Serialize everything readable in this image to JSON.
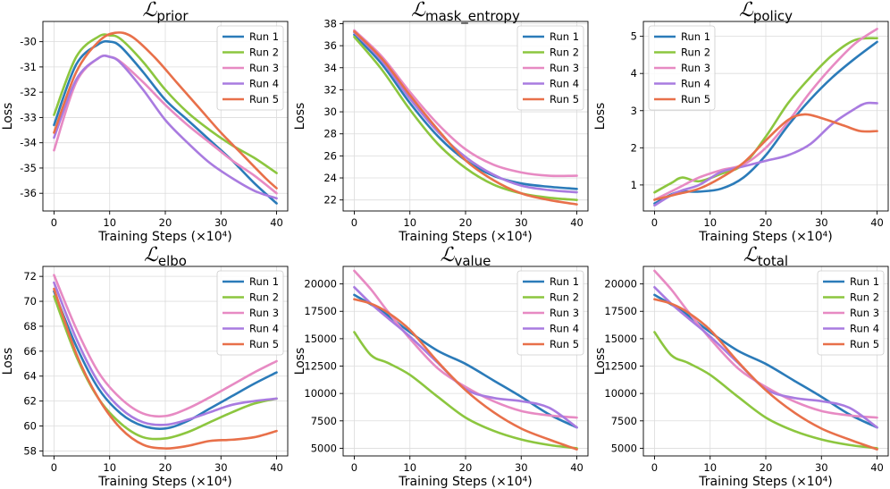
{
  "colors": {
    "run1": "#2b7bb9",
    "run2": "#8cc63f",
    "run3": "#e78ac3",
    "run4": "#a97be0",
    "run5": "#e8704a"
  },
  "chart_data": [
    {
      "type": "line",
      "title": "ℒ",
      "title_subscript": "prior",
      "xlabel": "Training Steps (×10⁴)",
      "ylabel": "Loss",
      "xlim": [
        -2,
        42
      ],
      "ylim": [
        -36.7,
        -29.2
      ],
      "xticks": [
        0,
        10,
        20,
        30,
        40
      ],
      "yticks": [
        -36,
        -35,
        -34,
        -33,
        -32,
        -31,
        -30
      ],
      "grid": true,
      "legend": "top-right",
      "series": [
        {
          "name": "Run 1",
          "x": [
            0,
            4,
            8,
            10,
            12,
            16,
            20,
            24,
            28,
            32,
            36,
            40
          ],
          "y": [
            -33.3,
            -30.9,
            -30.1,
            -30.0,
            -30.2,
            -31.2,
            -32.3,
            -33.1,
            -33.9,
            -34.7,
            -35.6,
            -36.4
          ]
        },
        {
          "name": "Run 2",
          "x": [
            0,
            4,
            8,
            10,
            12,
            16,
            20,
            24,
            28,
            32,
            36,
            40
          ],
          "y": [
            -32.9,
            -30.6,
            -29.8,
            -29.75,
            -29.9,
            -30.8,
            -31.9,
            -32.8,
            -33.5,
            -34.1,
            -34.6,
            -35.2
          ]
        },
        {
          "name": "Run 3",
          "x": [
            0,
            4,
            8,
            10,
            12,
            16,
            20,
            24,
            28,
            32,
            36,
            40
          ],
          "y": [
            -34.3,
            -31.6,
            -30.65,
            -30.6,
            -30.8,
            -31.6,
            -32.5,
            -33.3,
            -34.0,
            -34.7,
            -35.3,
            -36.0
          ]
        },
        {
          "name": "Run 4",
          "x": [
            0,
            4,
            8,
            10,
            12,
            16,
            20,
            24,
            28,
            32,
            36,
            40
          ],
          "y": [
            -33.8,
            -31.5,
            -30.65,
            -30.6,
            -30.85,
            -31.9,
            -33.1,
            -34.0,
            -34.8,
            -35.4,
            -35.9,
            -36.2
          ]
        },
        {
          "name": "Run 5",
          "x": [
            0,
            4,
            8,
            11,
            14,
            18,
            22,
            26,
            30,
            34,
            38,
            40
          ],
          "y": [
            -33.6,
            -31.2,
            -30.0,
            -29.65,
            -29.8,
            -30.6,
            -31.6,
            -32.6,
            -33.6,
            -34.5,
            -35.4,
            -35.8
          ]
        }
      ]
    },
    {
      "type": "line",
      "title": "ℒ",
      "title_subscript": "mask_entropy",
      "xlabel": "Training Steps (×10⁴)",
      "ylabel": "Loss",
      "xlim": [
        -2,
        42
      ],
      "ylim": [
        21.0,
        38.2
      ],
      "xticks": [
        0,
        10,
        20,
        30,
        40
      ],
      "yticks": [
        22,
        24,
        26,
        28,
        30,
        32,
        34,
        36,
        38
      ],
      "grid": true,
      "legend": "top-right",
      "series": [
        {
          "name": "Run 1",
          "x": [
            0,
            5,
            10,
            15,
            20,
            25,
            30,
            35,
            40
          ],
          "y": [
            37.0,
            34.3,
            30.8,
            27.8,
            25.6,
            24.2,
            23.5,
            23.2,
            23.0
          ]
        },
        {
          "name": "Run 2",
          "x": [
            0,
            5,
            10,
            15,
            20,
            25,
            30,
            35,
            40
          ],
          "y": [
            36.8,
            33.8,
            30.2,
            27.1,
            24.9,
            23.4,
            22.6,
            22.2,
            22.0
          ]
        },
        {
          "name": "Run 3",
          "x": [
            0,
            5,
            10,
            15,
            20,
            25,
            30,
            35,
            40
          ],
          "y": [
            37.4,
            35.0,
            31.8,
            28.9,
            26.6,
            25.2,
            24.5,
            24.2,
            24.2
          ]
        },
        {
          "name": "Run 4",
          "x": [
            0,
            5,
            10,
            15,
            20,
            25,
            30,
            35,
            40
          ],
          "y": [
            37.2,
            34.6,
            31.2,
            28.2,
            25.9,
            24.3,
            23.3,
            22.9,
            22.7
          ]
        },
        {
          "name": "Run 5",
          "x": [
            0,
            5,
            10,
            15,
            20,
            25,
            30,
            35,
            40
          ],
          "y": [
            37.3,
            34.8,
            31.5,
            28.4,
            25.6,
            23.8,
            22.6,
            22.0,
            21.6
          ]
        }
      ]
    },
    {
      "type": "line",
      "title": "ℒ",
      "title_subscript": "policy",
      "xlabel": "Training Steps (×10⁴)",
      "ylabel": "Loss",
      "xlim": [
        -2,
        42
      ],
      "ylim": [
        0.3,
        5.4
      ],
      "xticks": [
        0,
        10,
        20,
        30,
        40
      ],
      "yticks": [
        1,
        2,
        3,
        4,
        5
      ],
      "grid": true,
      "legend": "top-left",
      "series": [
        {
          "name": "Run 1",
          "x": [
            0,
            4,
            8,
            12,
            16,
            20,
            24,
            28,
            32,
            36,
            40
          ],
          "y": [
            0.5,
            0.8,
            0.82,
            0.9,
            1.2,
            1.8,
            2.6,
            3.3,
            3.9,
            4.4,
            4.85
          ]
        },
        {
          "name": "Run 2",
          "x": [
            0,
            3,
            5,
            8,
            12,
            16,
            20,
            24,
            28,
            32,
            36,
            40
          ],
          "y": [
            0.8,
            1.05,
            1.2,
            1.1,
            1.3,
            1.55,
            2.3,
            3.2,
            3.9,
            4.5,
            4.9,
            4.95
          ]
        },
        {
          "name": "Run 3",
          "x": [
            0,
            4,
            8,
            12,
            16,
            20,
            24,
            28,
            32,
            36,
            40
          ],
          "y": [
            0.6,
            0.9,
            1.2,
            1.4,
            1.55,
            2.0,
            2.7,
            3.5,
            4.2,
            4.8,
            5.2
          ]
        },
        {
          "name": "Run 4",
          "x": [
            0,
            4,
            8,
            12,
            16,
            20,
            24,
            28,
            32,
            36,
            38,
            40
          ],
          "y": [
            0.45,
            0.8,
            1.0,
            1.35,
            1.5,
            1.65,
            1.8,
            2.1,
            2.65,
            3.05,
            3.2,
            3.2
          ]
        },
        {
          "name": "Run 5",
          "x": [
            0,
            4,
            8,
            12,
            16,
            20,
            24,
            27,
            30,
            34,
            37,
            40
          ],
          "y": [
            0.6,
            0.75,
            0.9,
            1.2,
            1.6,
            2.2,
            2.75,
            2.9,
            2.8,
            2.6,
            2.45,
            2.45
          ]
        }
      ]
    },
    {
      "type": "line",
      "title": "ℒ",
      "title_subscript": "elbo",
      "xlabel": "Training Steps (×10⁴)",
      "ylabel": "Loss",
      "xlim": [
        -2,
        42
      ],
      "ylim": [
        57.6,
        72.8
      ],
      "xticks": [
        0,
        10,
        20,
        30,
        40
      ],
      "yticks": [
        58,
        60,
        62,
        64,
        66,
        68,
        70,
        72
      ],
      "grid": true,
      "legend": "top-right",
      "series": [
        {
          "name": "Run 1",
          "x": [
            0,
            4,
            8,
            12,
            16,
            20,
            24,
            28,
            32,
            36,
            40
          ],
          "y": [
            70.8,
            66.4,
            63.0,
            61.0,
            60.0,
            59.8,
            60.4,
            61.4,
            62.4,
            63.4,
            64.3
          ]
        },
        {
          "name": "Run 2",
          "x": [
            0,
            4,
            8,
            12,
            16,
            20,
            24,
            28,
            32,
            36,
            40
          ],
          "y": [
            70.4,
            65.6,
            62.2,
            60.2,
            59.1,
            59.0,
            59.5,
            60.3,
            61.1,
            61.8,
            62.2
          ]
        },
        {
          "name": "Run 3",
          "x": [
            0,
            4,
            8,
            12,
            16,
            20,
            24,
            28,
            32,
            36,
            40
          ],
          "y": [
            72.1,
            67.8,
            64.3,
            62.2,
            61.0,
            60.8,
            61.4,
            62.3,
            63.3,
            64.3,
            65.2
          ]
        },
        {
          "name": "Run 4",
          "x": [
            0,
            4,
            8,
            12,
            16,
            20,
            24,
            28,
            32,
            36,
            40
          ],
          "y": [
            71.5,
            67.0,
            63.5,
            61.4,
            60.3,
            60.1,
            60.5,
            61.1,
            61.7,
            62.0,
            62.2
          ]
        },
        {
          "name": "Run 5",
          "x": [
            0,
            4,
            8,
            12,
            16,
            20,
            24,
            28,
            32,
            36,
            40
          ],
          "y": [
            71.0,
            65.8,
            62.2,
            59.8,
            58.5,
            58.2,
            58.4,
            58.8,
            58.9,
            59.1,
            59.6
          ]
        }
      ]
    },
    {
      "type": "line",
      "title": "ℒ",
      "title_subscript": "value",
      "xlabel": "Training Steps (×10⁴)",
      "ylabel": "Loss",
      "xlim": [
        -2,
        42
      ],
      "ylim": [
        4300,
        21600
      ],
      "xticks": [
        0,
        10,
        20,
        30,
        40
      ],
      "yticks": [
        5000,
        7500,
        10000,
        12500,
        15000,
        17500,
        20000
      ],
      "grid": true,
      "legend": "top-right",
      "series": [
        {
          "name": "Run 1",
          "x": [
            0,
            5,
            10,
            15,
            20,
            25,
            30,
            35,
            40
          ],
          "y": [
            19000,
            17500,
            15600,
            13900,
            12700,
            11200,
            9700,
            8100,
            6900
          ]
        },
        {
          "name": "Run 2",
          "x": [
            0,
            3,
            6,
            10,
            15,
            20,
            25,
            30,
            35,
            40
          ],
          "y": [
            15600,
            13500,
            12800,
            11700,
            9700,
            7800,
            6600,
            5800,
            5300,
            5000
          ]
        },
        {
          "name": "Run 3",
          "x": [
            0,
            3,
            6,
            10,
            15,
            20,
            25,
            30,
            35,
            40
          ],
          "y": [
            21200,
            19500,
            17500,
            15000,
            12300,
            10600,
            9300,
            8400,
            8000,
            7800
          ]
        },
        {
          "name": "Run 4",
          "x": [
            0,
            3,
            6,
            10,
            15,
            20,
            25,
            30,
            35,
            40
          ],
          "y": [
            19700,
            18200,
            16900,
            15200,
            12800,
            10400,
            9600,
            9300,
            8700,
            6900
          ]
        },
        {
          "name": "Run 5",
          "x": [
            0,
            3,
            6,
            10,
            15,
            20,
            25,
            30,
            35,
            40
          ],
          "y": [
            18600,
            18200,
            17400,
            15800,
            12900,
            10300,
            8300,
            6800,
            5800,
            4900
          ]
        }
      ]
    },
    {
      "type": "line",
      "title": "ℒ",
      "title_subscript": "total",
      "xlabel": "Training Steps (×10⁴)",
      "ylabel": "Loss",
      "xlim": [
        -2,
        42
      ],
      "ylim": [
        4300,
        21600
      ],
      "xticks": [
        0,
        10,
        20,
        30,
        40
      ],
      "yticks": [
        5000,
        7500,
        10000,
        12500,
        15000,
        17500,
        20000
      ],
      "grid": true,
      "legend": "top-right",
      "series": [
        {
          "name": "Run 1",
          "x": [
            0,
            5,
            10,
            15,
            20,
            25,
            30,
            35,
            40
          ],
          "y": [
            19000,
            17500,
            15600,
            13900,
            12700,
            11200,
            9700,
            8100,
            6900
          ]
        },
        {
          "name": "Run 2",
          "x": [
            0,
            3,
            6,
            10,
            15,
            20,
            25,
            30,
            35,
            40
          ],
          "y": [
            15600,
            13500,
            12800,
            11700,
            9700,
            7800,
            6600,
            5800,
            5300,
            5000
          ]
        },
        {
          "name": "Run 3",
          "x": [
            0,
            3,
            6,
            10,
            15,
            20,
            25,
            30,
            35,
            40
          ],
          "y": [
            21200,
            19500,
            17500,
            15000,
            12300,
            10600,
            9300,
            8400,
            8000,
            7800
          ]
        },
        {
          "name": "Run 4",
          "x": [
            0,
            3,
            6,
            10,
            15,
            20,
            25,
            30,
            35,
            40
          ],
          "y": [
            19700,
            18200,
            16900,
            15200,
            12800,
            10400,
            9600,
            9300,
            8700,
            6900
          ]
        },
        {
          "name": "Run 5",
          "x": [
            0,
            3,
            6,
            10,
            15,
            20,
            25,
            30,
            35,
            40
          ],
          "y": [
            18600,
            18200,
            17400,
            15800,
            12900,
            10300,
            8300,
            6800,
            5800,
            4900
          ]
        }
      ]
    }
  ]
}
